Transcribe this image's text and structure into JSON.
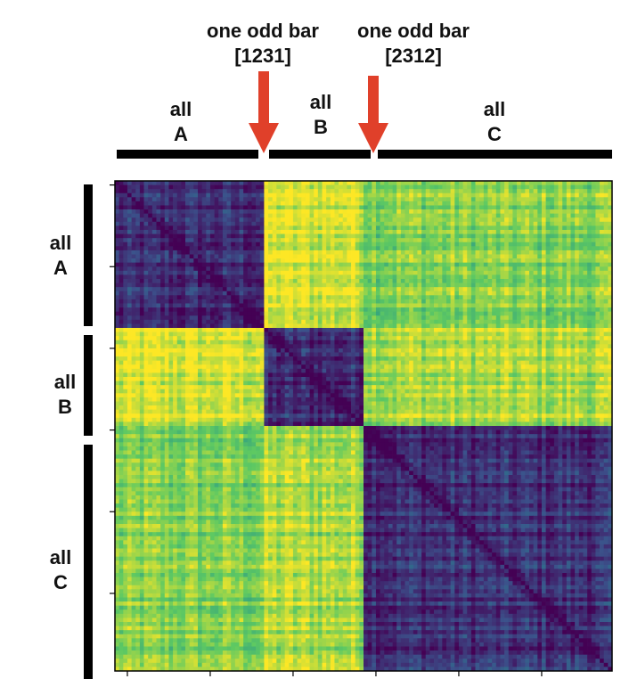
{
  "chart_data": {
    "type": "heatmap",
    "colormap": "viridis",
    "colormap_colors": [
      "#440154",
      "#3b528b",
      "#21918c",
      "#5ec962",
      "#fde725"
    ],
    "annotation_color": "#e0402a",
    "bar_color": "#000000",
    "n_cells": 120,
    "blocks": [
      {
        "name_line1": "all",
        "name_line2": "A",
        "range": [
          0,
          36
        ]
      },
      {
        "name_line1": "all",
        "name_line2": "B",
        "range": [
          36,
          60
        ]
      },
      {
        "name_line1": "all",
        "name_line2": "C",
        "range": [
          60,
          120
        ]
      }
    ],
    "block_similarity": [
      [
        0.12,
        0.93,
        0.8
      ],
      [
        0.93,
        0.12,
        0.87
      ],
      [
        0.8,
        0.87,
        0.14
      ]
    ],
    "odd_bars": [
      {
        "line1": "one odd bar",
        "line2": "[1231]",
        "index": 36
      },
      {
        "line1": "one odd bar",
        "line2": "[2312]",
        "index": 60
      }
    ],
    "diagonal_value": 0.0,
    "x_tick_count": 6,
    "y_tick_count": 6
  }
}
